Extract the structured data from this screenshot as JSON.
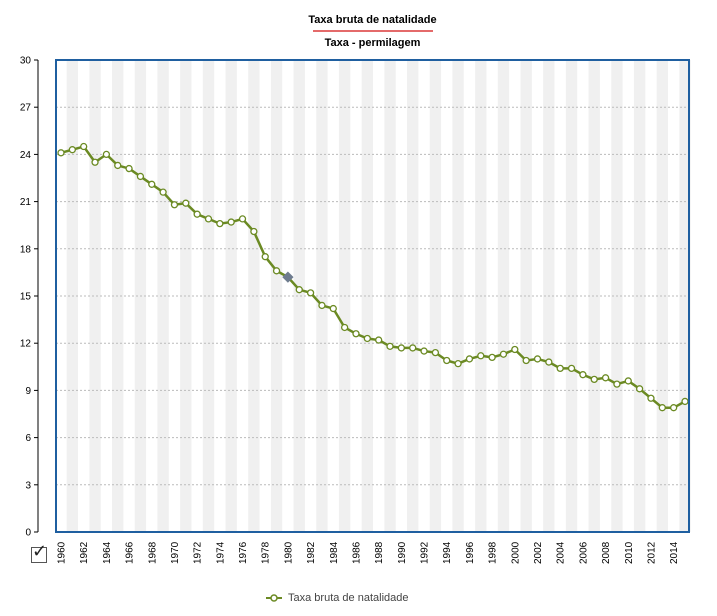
{
  "title": "Taxa bruta de natalidade",
  "subtitle": "Taxa - permilagem",
  "legend_label": "Taxa bruta de natalidade",
  "colors": {
    "line": "#6b8a23",
    "marker_fill": "#ffffff",
    "highlight": "#6f7c8f",
    "frame": "#1f5fa0",
    "underline": "#e46a6a"
  },
  "icons": {
    "toggle": "checkbox-checked-icon"
  },
  "chart_data": {
    "type": "line",
    "title": "Taxa bruta de natalidade",
    "subtitle": "Taxa - permilagem",
    "xlabel": "",
    "ylabel": "",
    "ylim": [
      0,
      30
    ],
    "yticks": [
      0,
      3,
      6,
      9,
      12,
      15,
      18,
      21,
      24,
      27,
      30
    ],
    "x": [
      1960,
      1961,
      1962,
      1963,
      1964,
      1965,
      1966,
      1967,
      1968,
      1969,
      1970,
      1971,
      1972,
      1973,
      1974,
      1975,
      1976,
      1977,
      1978,
      1979,
      1980,
      1981,
      1982,
      1983,
      1984,
      1985,
      1986,
      1987,
      1988,
      1989,
      1990,
      1991,
      1992,
      1993,
      1994,
      1995,
      1996,
      1997,
      1998,
      1999,
      2000,
      2001,
      2002,
      2003,
      2004,
      2005,
      2006,
      2007,
      2008,
      2009,
      2010,
      2011,
      2012,
      2013,
      2014,
      2015
    ],
    "xtick_labels": [
      "1960",
      "1962",
      "1964",
      "1966",
      "1968",
      "1970",
      "1972",
      "1974",
      "1976",
      "1978",
      "1980",
      "1982",
      "1984",
      "1986",
      "1988",
      "1990",
      "1992",
      "1994",
      "1996",
      "1998",
      "2000",
      "2002",
      "2004",
      "2006",
      "2008",
      "2010",
      "2012",
      "2014"
    ],
    "grid": true,
    "legend_position": "bottom",
    "highlighted_x": 1980,
    "series": [
      {
        "name": "Taxa bruta de natalidade",
        "values": [
          24.1,
          24.3,
          24.5,
          23.5,
          24.0,
          23.3,
          23.1,
          22.6,
          22.1,
          21.6,
          20.8,
          20.9,
          20.2,
          19.9,
          19.6,
          19.7,
          19.9,
          19.1,
          17.5,
          16.6,
          16.2,
          15.4,
          15.2,
          14.4,
          14.2,
          13.0,
          12.6,
          12.3,
          12.2,
          11.8,
          11.7,
          11.7,
          11.5,
          11.4,
          10.9,
          10.7,
          11.0,
          11.2,
          11.1,
          11.3,
          11.6,
          10.9,
          11.0,
          10.8,
          10.4,
          10.4,
          10.0,
          9.7,
          9.8,
          9.4,
          9.6,
          9.1,
          8.5,
          7.9,
          7.9,
          8.3
        ]
      }
    ]
  }
}
